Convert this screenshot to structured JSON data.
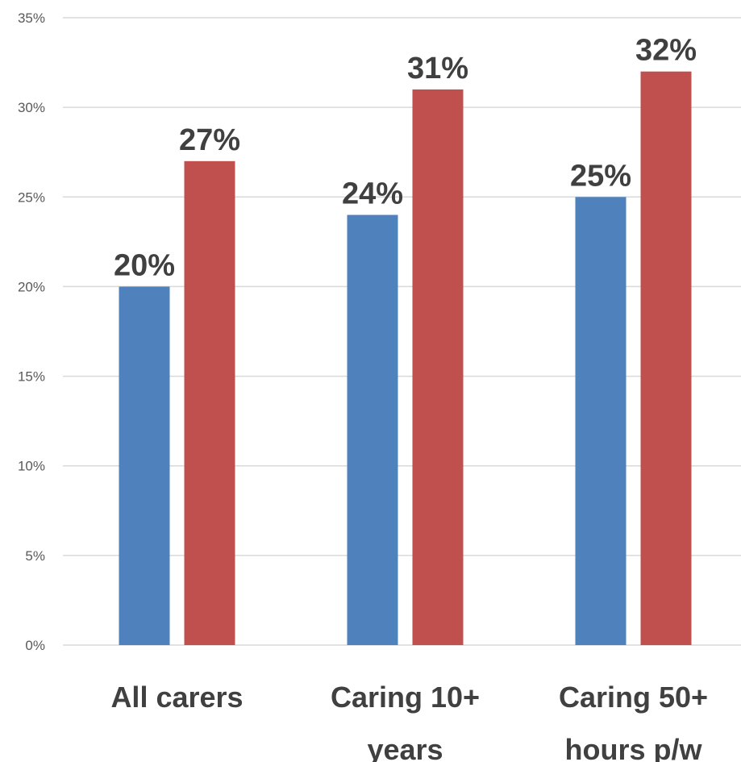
{
  "chart_data": {
    "type": "bar",
    "categories": [
      [
        "All carers"
      ],
      [
        "Caring 10+",
        "years"
      ],
      [
        "Caring 50+",
        "hours p/w"
      ]
    ],
    "series": [
      {
        "color": "#4f81bd",
        "values": [
          20,
          24,
          25
        ]
      },
      {
        "color": "#c0504d",
        "values": [
          27,
          31,
          32
        ]
      }
    ],
    "data_labels": [
      [
        "20%",
        "24%",
        "25%"
      ],
      [
        "27%",
        "31%",
        "32%"
      ]
    ],
    "yticks": [
      0,
      5,
      10,
      15,
      20,
      25,
      30,
      35
    ],
    "ytick_labels": [
      "0%",
      "5%",
      "10%",
      "15%",
      "20%",
      "25%",
      "30%",
      "35%"
    ],
    "ylim": [
      0,
      35
    ],
    "grid": true,
    "title": "",
    "xlabel": "",
    "ylabel": ""
  }
}
